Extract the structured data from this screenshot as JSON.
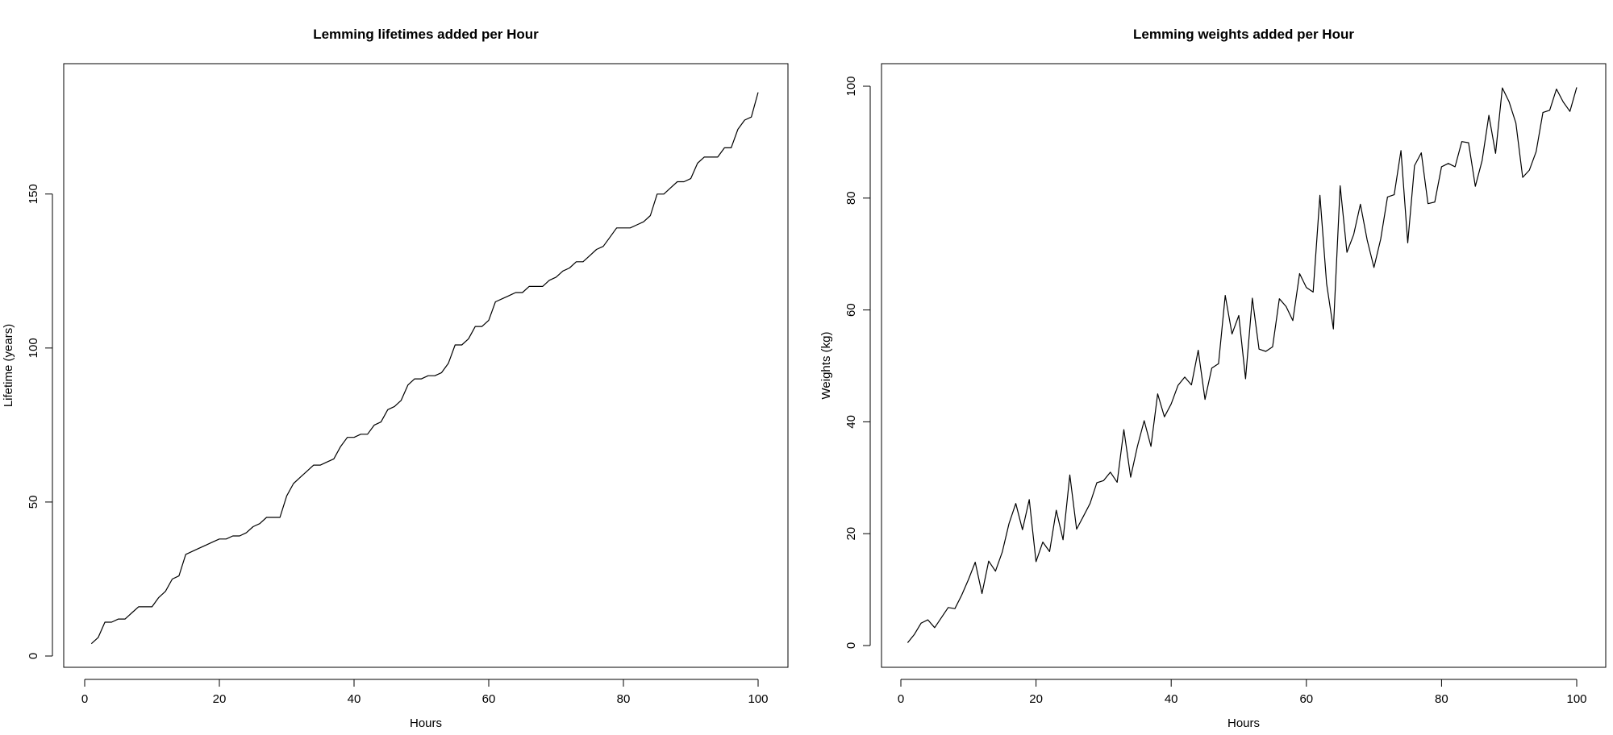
{
  "chart_data": [
    {
      "type": "line",
      "title": "Lemming lifetimes added per Hour",
      "xlabel": "Hours",
      "ylabel": "Lifetime (years)",
      "xlim": [
        0,
        100
      ],
      "ylim": [
        0,
        185
      ],
      "xticks": [
        0,
        20,
        40,
        60,
        80,
        100
      ],
      "yticks": [
        0,
        50,
        100,
        150
      ],
      "grid": false,
      "x": [
        1,
        2,
        3,
        4,
        5,
        6,
        7,
        8,
        9,
        10,
        11,
        12,
        13,
        14,
        15,
        16,
        17,
        18,
        19,
        20,
        21,
        22,
        23,
        24,
        25,
        26,
        27,
        28,
        29,
        30,
        31,
        32,
        33,
        34,
        35,
        36,
        37,
        38,
        39,
        40,
        41,
        42,
        43,
        44,
        45,
        46,
        47,
        48,
        49,
        50,
        51,
        52,
        53,
        54,
        55,
        56,
        57,
        58,
        59,
        60,
        61,
        62,
        63,
        64,
        65,
        66,
        67,
        68,
        69,
        70,
        71,
        72,
        73,
        74,
        75,
        76,
        77,
        78,
        79,
        80,
        81,
        82,
        83,
        84,
        85,
        86,
        87,
        88,
        89,
        90,
        91,
        92,
        93,
        94,
        95,
        96,
        97,
        98,
        99,
        100
      ],
      "values": [
        4,
        6,
        11,
        11,
        12,
        12,
        14,
        16,
        16,
        16,
        19,
        21,
        25,
        26,
        33,
        34,
        35,
        36,
        37,
        38,
        38,
        39,
        39,
        40,
        42,
        43,
        45,
        45,
        45,
        52,
        56,
        58,
        60,
        62,
        62,
        63,
        64,
        68,
        71,
        71,
        72,
        72,
        75,
        76,
        80,
        81,
        83,
        88,
        90,
        90,
        91,
        91,
        92,
        95,
        101,
        101,
        103,
        107,
        107,
        109,
        115,
        116,
        117,
        118,
        118,
        120,
        120,
        120,
        122,
        123,
        125,
        126,
        128,
        128,
        130,
        132,
        133,
        136,
        139,
        139,
        139,
        140,
        141,
        143,
        150,
        150,
        152,
        154,
        154,
        155,
        160,
        162,
        162,
        162,
        165,
        165,
        171,
        174,
        175,
        183
      ]
    },
    {
      "type": "line",
      "title": "Lemming weights added per Hour",
      "xlabel": "Hours",
      "ylabel": "Weights (kg)",
      "xlim": [
        0,
        100
      ],
      "ylim": [
        0,
        100
      ],
      "xticks": [
        0,
        20,
        40,
        60,
        80,
        100
      ],
      "yticks": [
        0,
        20,
        40,
        60,
        80,
        100
      ],
      "grid": false,
      "x": [
        1,
        2,
        3,
        4,
        5,
        6,
        7,
        8,
        9,
        10,
        11,
        12,
        13,
        14,
        15,
        16,
        17,
        18,
        19,
        20,
        21,
        22,
        23,
        24,
        25,
        26,
        27,
        28,
        29,
        30,
        31,
        32,
        33,
        34,
        35,
        36,
        37,
        38,
        39,
        40,
        41,
        42,
        43,
        44,
        45,
        46,
        47,
        48,
        49,
        50,
        51,
        52,
        53,
        54,
        55,
        56,
        57,
        58,
        59,
        60,
        61,
        62,
        63,
        64,
        65,
        66,
        67,
        68,
        69,
        70,
        71,
        72,
        73,
        74,
        75,
        76,
        77,
        78,
        79,
        80,
        81,
        82,
        83,
        84,
        85,
        86,
        87,
        88,
        89,
        90,
        91,
        92,
        93,
        94,
        95,
        96,
        97,
        98,
        99,
        100
      ],
      "values": [
        0.5,
        2,
        4,
        4.6,
        3.2,
        5,
        6.8,
        6.6,
        9,
        11.8,
        14.9,
        9.3,
        15.1,
        13.3,
        16.7,
        21.8,
        25.4,
        20.7,
        26.1,
        15,
        18.5,
        16.8,
        24.2,
        18.9,
        30.5,
        20.8,
        23.1,
        25.4,
        29.1,
        29.5,
        31,
        29.2,
        38.6,
        30.1,
        35.6,
        40.2,
        35.6,
        45,
        40.9,
        43.2,
        46.5,
        48,
        46.6,
        52.8,
        44,
        49.6,
        50.4,
        62.6,
        55.7,
        59,
        47.7,
        62.1,
        53,
        52.6,
        53.4,
        62,
        60.6,
        58.1,
        66.5,
        64,
        63.2,
        80.5,
        64.7,
        56.6,
        82.2,
        70.3,
        73.5,
        78.9,
        72.5,
        67.6,
        72.7,
        80.2,
        80.6,
        88.5,
        72,
        85.8,
        88.1,
        79,
        79.3,
        85.6,
        86.2,
        85.6,
        90.1,
        89.9,
        82.1,
        86.7,
        94.8,
        88,
        99.7,
        97.2,
        93.4,
        83.7,
        85,
        88.3,
        95.3,
        95.7,
        99.5,
        97.2,
        95.5,
        99.8
      ]
    }
  ]
}
